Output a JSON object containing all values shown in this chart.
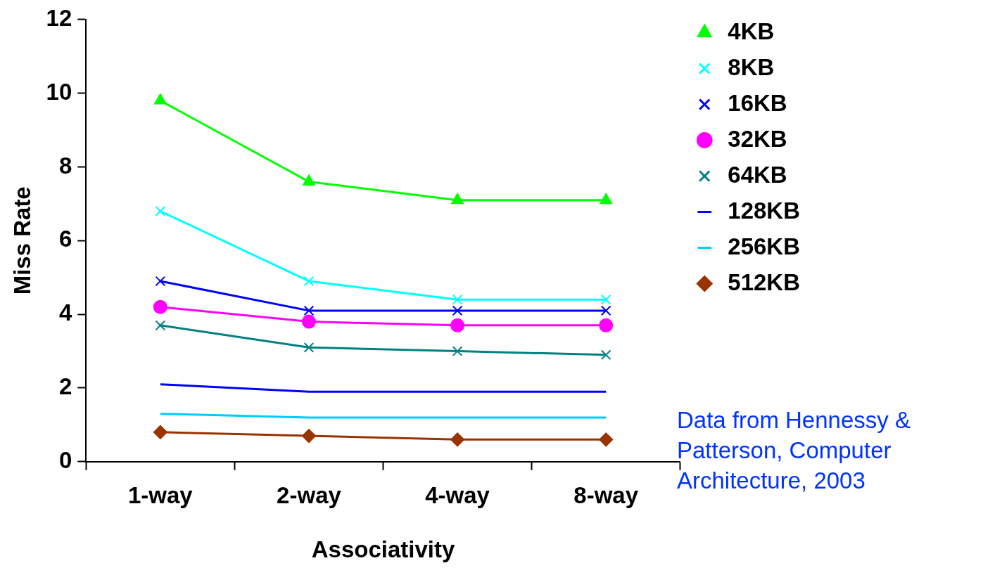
{
  "chart_data": {
    "type": "line",
    "xlabel": "Associativity",
    "ylabel": "Miss Rate",
    "categories": [
      "1-way",
      "2-way",
      "4-way",
      "8-way"
    ],
    "ylim": [
      0,
      12
    ],
    "yticks": [
      0,
      2,
      4,
      6,
      8,
      10,
      12
    ],
    "grid": false,
    "legend": "right",
    "annotations": [
      "Data from Hennessy & Patterson, Computer Architecture, 2003"
    ],
    "series": [
      {
        "name": "4KB",
        "color": "#00ff00",
        "marker": "triangle",
        "values": [
          9.8,
          7.6,
          7.1,
          7.1
        ]
      },
      {
        "name": "8KB",
        "color": "#00ffff",
        "marker": "cross",
        "values": [
          6.8,
          4.9,
          4.4,
          4.4
        ]
      },
      {
        "name": "16KB",
        "color": "#0000ff",
        "marker": "cross",
        "values": [
          4.9,
          4.1,
          4.1,
          4.1
        ]
      },
      {
        "name": "32KB",
        "color": "#ff00ff",
        "marker": "circle",
        "values": [
          4.2,
          3.8,
          3.7,
          3.7
        ]
      },
      {
        "name": "64KB",
        "color": "#008080",
        "marker": "cross",
        "values": [
          3.7,
          3.1,
          3.0,
          2.9
        ]
      },
      {
        "name": "128KB",
        "color": "#0000ff",
        "marker": "none",
        "values": [
          2.1,
          1.9,
          1.9,
          1.9
        ]
      },
      {
        "name": "256KB",
        "color": "#00ccff",
        "marker": "none",
        "values": [
          1.3,
          1.2,
          1.2,
          1.2
        ]
      },
      {
        "name": "512KB",
        "color": "#993300",
        "marker": "diamond",
        "values": [
          0.8,
          0.7,
          0.6,
          0.6
        ]
      }
    ]
  }
}
